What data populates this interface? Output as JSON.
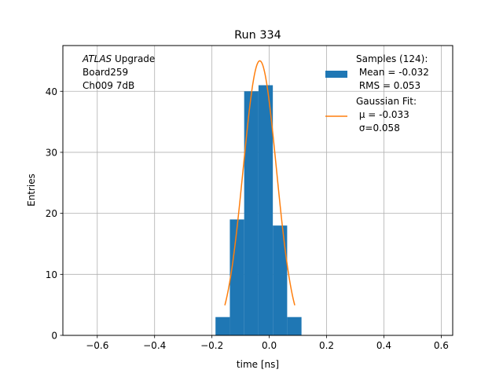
{
  "chart_data": {
    "type": "histogram",
    "title": "Run 334",
    "xlabel": "time [ns]",
    "ylabel": "Entries",
    "xlim": [
      -0.72,
      0.64
    ],
    "ylim": [
      0,
      47.5
    ],
    "xticks": [
      -0.6,
      -0.4,
      -0.2,
      0.0,
      0.2,
      0.4,
      0.6
    ],
    "xtick_labels": [
      "−0.6",
      "−0.4",
      "−0.2",
      "0.0",
      "0.2",
      "0.4",
      "0.6"
    ],
    "yticks": [
      0,
      10,
      20,
      30,
      40
    ],
    "ytick_labels": [
      "0",
      "10",
      "20",
      "30",
      "40"
    ],
    "grid": true,
    "legend_placement": "upper right",
    "annotation": {
      "lines": [
        {
          "italic": "ATLAS",
          "rest": " Upgrade"
        },
        {
          "italic": "",
          "rest": " Board259"
        },
        {
          "italic": "",
          "rest": " Ch009 7dB"
        }
      ]
    },
    "series": [
      {
        "kind": "histogram",
        "color": "#1f77b4",
        "bins": [
          {
            "x0": -0.1875,
            "x1": -0.1375,
            "count": 3
          },
          {
            "x0": -0.1375,
            "x1": -0.0875,
            "count": 19
          },
          {
            "x0": -0.0875,
            "x1": -0.0375,
            "count": 40
          },
          {
            "x0": -0.0375,
            "x1": 0.0125,
            "count": 41
          },
          {
            "x0": 0.0125,
            "x1": 0.0625,
            "count": 18
          },
          {
            "x0": 0.0625,
            "x1": 0.1125,
            "count": 3
          }
        ]
      },
      {
        "kind": "line",
        "color": "#ff7f0e",
        "function": "gaussian",
        "mu": -0.033,
        "sigma": 0.058,
        "amplitude": 45,
        "x_range": [
          -0.155,
          0.089
        ]
      }
    ],
    "legend": [
      {
        "kind": "patch",
        "color": "#1f77b4",
        "lines": [
          "Samples (124):",
          " Mean = -0.032",
          " RMS = 0.053"
        ]
      },
      {
        "kind": "line",
        "color": "#ff7f0e",
        "lines": [
          "Gaussian Fit:",
          " μ = -0.033",
          " σ=0.058"
        ]
      }
    ]
  }
}
